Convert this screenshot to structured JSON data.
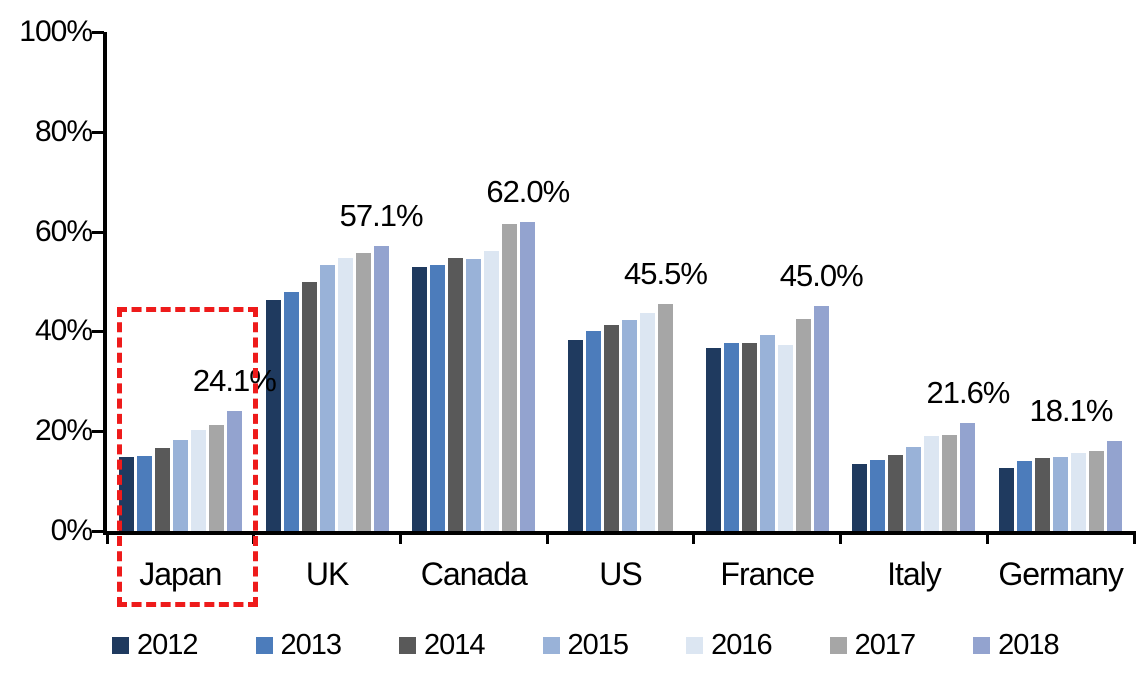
{
  "chart_data": {
    "type": "bar",
    "title": "",
    "xlabel": "",
    "ylabel": "",
    "ylim": [
      0,
      100
    ],
    "grid": false,
    "legend_position": "bottom",
    "categories": [
      "Japan",
      "UK",
      "Canada",
      "US",
      "France",
      "Italy",
      "Germany"
    ],
    "series": [
      {
        "name": "2012",
        "color": "#1f3a5f",
        "values": [
          14.8,
          46.3,
          53.0,
          38.3,
          36.6,
          13.4,
          12.6
        ]
      },
      {
        "name": "2013",
        "color": "#4c7cbb",
        "values": [
          15.0,
          47.9,
          53.4,
          40.0,
          37.7,
          14.3,
          14.0
        ]
      },
      {
        "name": "2014",
        "color": "#595959",
        "values": [
          16.6,
          49.9,
          54.8,
          41.2,
          37.7,
          15.3,
          14.6
        ]
      },
      {
        "name": "2015",
        "color": "#99b2d8",
        "values": [
          18.2,
          53.3,
          54.6,
          42.3,
          39.3,
          16.9,
          14.8
        ]
      },
      {
        "name": "2016",
        "color": "#dce6f2",
        "values": [
          20.2,
          54.7,
          56.2,
          43.6,
          37.3,
          19.0,
          15.6
        ]
      },
      {
        "name": "2017",
        "color": "#a6a6a6",
        "values": [
          21.2,
          55.8,
          61.5,
          45.5,
          42.4,
          19.3,
          16.0
        ]
      },
      {
        "name": "2018",
        "color": "#93a3cf",
        "values": [
          24.1,
          57.1,
          62.0,
          null,
          45.0,
          21.6,
          18.1
        ]
      }
    ],
    "data_labels": [
      "24.1%",
      "57.1%",
      "62.0%",
      "45.5%",
      "45.0%",
      "21.6%",
      "18.1%"
    ],
    "ytick_labels": [
      "0%",
      "20%",
      "40%",
      "60%",
      "80%",
      "100%"
    ],
    "ytick_values": [
      0,
      20,
      40,
      60,
      80,
      100
    ],
    "legend_entries": [
      "2012",
      "2013",
      "2014",
      "2015",
      "2016",
      "2017",
      "2018"
    ],
    "annotations": {
      "highlight_box": {
        "category": "Japan",
        "color": "#ee1b1b",
        "style": "dashed"
      }
    }
  }
}
